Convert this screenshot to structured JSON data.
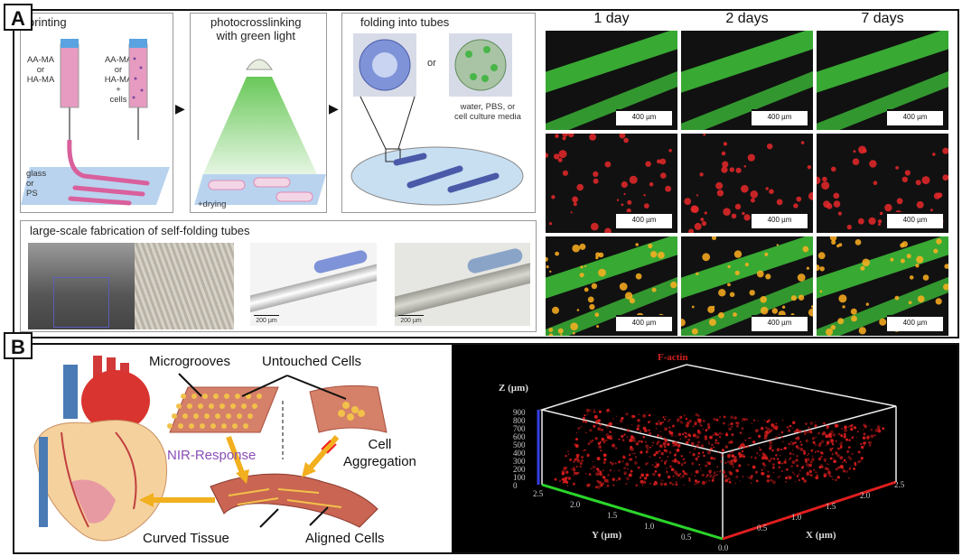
{
  "panel_a": {
    "letter": "A",
    "printing": {
      "title": "printing",
      "left_vial_label": "AA-MA\nor\nHA-MA",
      "right_vial_label": "AA-MA\nor\nHA-MA\n+\ncells",
      "substrate_label": "glass\nor\nPS"
    },
    "photocrosslinking": {
      "title": "photocrosslinking\nwith green light",
      "drying_label": "+drying"
    },
    "folding": {
      "title": "folding into tubes",
      "or_label": "or",
      "media_label": "water, PBS, or\ncell culture media"
    },
    "large_scale": {
      "title": "large-scale fabrication of self-folding tubes",
      "scale_left": "200 µm",
      "scale_right": "200 µm"
    },
    "microscopy": {
      "days": [
        "1 day",
        "2 days",
        "7 days"
      ],
      "scale_label": "400 µm"
    }
  },
  "panel_b": {
    "letter": "B",
    "labels": {
      "microgrooves": "Microgrooves",
      "untouched_cells": "Untouched Cells",
      "nir_response": "NIR-Response",
      "cell_aggregation": "Cell\nAggregation",
      "curved_tissue": "Curved Tissue",
      "aligned_cells": "Aligned Cells"
    },
    "plot3d": {
      "stain_label": "F-actin",
      "z_label": "Z (µm)",
      "y_label": "Y (µm)",
      "x_label": "X (µm)",
      "z_ticks": [
        "900",
        "800",
        "700",
        "600",
        "500",
        "400",
        "300",
        "200",
        "100",
        "0"
      ],
      "y_ticks": [
        "2.5",
        "2.0",
        "1.5",
        "1.0",
        "0.5",
        "0.0"
      ],
      "x_ticks": [
        "0.5",
        "1.0",
        "1.5",
        "2.0",
        "2.5"
      ]
    }
  },
  "colors": {
    "green_channel": "#3fc43a",
    "red_channel": "#e8282a",
    "tube_blue": "#5a6fc4",
    "print_pink": "#d9609c",
    "arrow_yellow": "#f2b01e",
    "nir_purple": "#8a4fb5"
  }
}
